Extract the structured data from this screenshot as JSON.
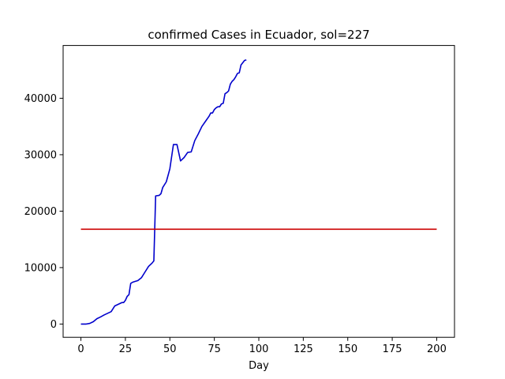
{
  "chart_data": {
    "type": "line",
    "title": "confirmed Cases in Ecuador, sol=227",
    "xlabel": "Day",
    "ylabel": "",
    "xlim": [
      -10,
      210
    ],
    "ylim": [
      -2350,
      49350
    ],
    "xticks": [
      0,
      25,
      50,
      75,
      100,
      125,
      150,
      175,
      200
    ],
    "yticks": [
      0,
      10000,
      20000,
      30000,
      40000
    ],
    "grid": false,
    "legend": "none",
    "series": [
      {
        "color": "#0000cc",
        "x": [
          0,
          3,
          5,
          7,
          9,
          11,
          13,
          15,
          17,
          19,
          21,
          23,
          24,
          25,
          26,
          27,
          28,
          29,
          30,
          32,
          34,
          36,
          38,
          40,
          41,
          42,
          44,
          45,
          46,
          48,
          50,
          52,
          54,
          56,
          58,
          60,
          62,
          64,
          66,
          68,
          70,
          72,
          73,
          74,
          75,
          76,
          77,
          78,
          79,
          80,
          81,
          82,
          83,
          84,
          85,
          86,
          87,
          88,
          89,
          90,
          91,
          92,
          93
        ],
        "y": [
          0,
          0,
          120,
          420,
          950,
          1250,
          1600,
          1900,
          2200,
          3200,
          3500,
          3800,
          3800,
          4200,
          4900,
          5200,
          7200,
          7400,
          7500,
          7700,
          8200,
          9200,
          10200,
          10800,
          11200,
          22700,
          22800,
          23100,
          24200,
          25200,
          27500,
          31800,
          31800,
          28900,
          29500,
          30400,
          30500,
          32500,
          33700,
          35000,
          35900,
          36800,
          37400,
          37400,
          38000,
          38300,
          38500,
          38500,
          39000,
          39100,
          40800,
          41000,
          41300,
          42500,
          43000,
          43300,
          43800,
          44400,
          44500,
          45900,
          46300,
          46700,
          46800
        ]
      },
      {
        "color": "#cc0000",
        "x": [
          0,
          200
        ],
        "y": [
          16800,
          16800
        ]
      }
    ]
  }
}
